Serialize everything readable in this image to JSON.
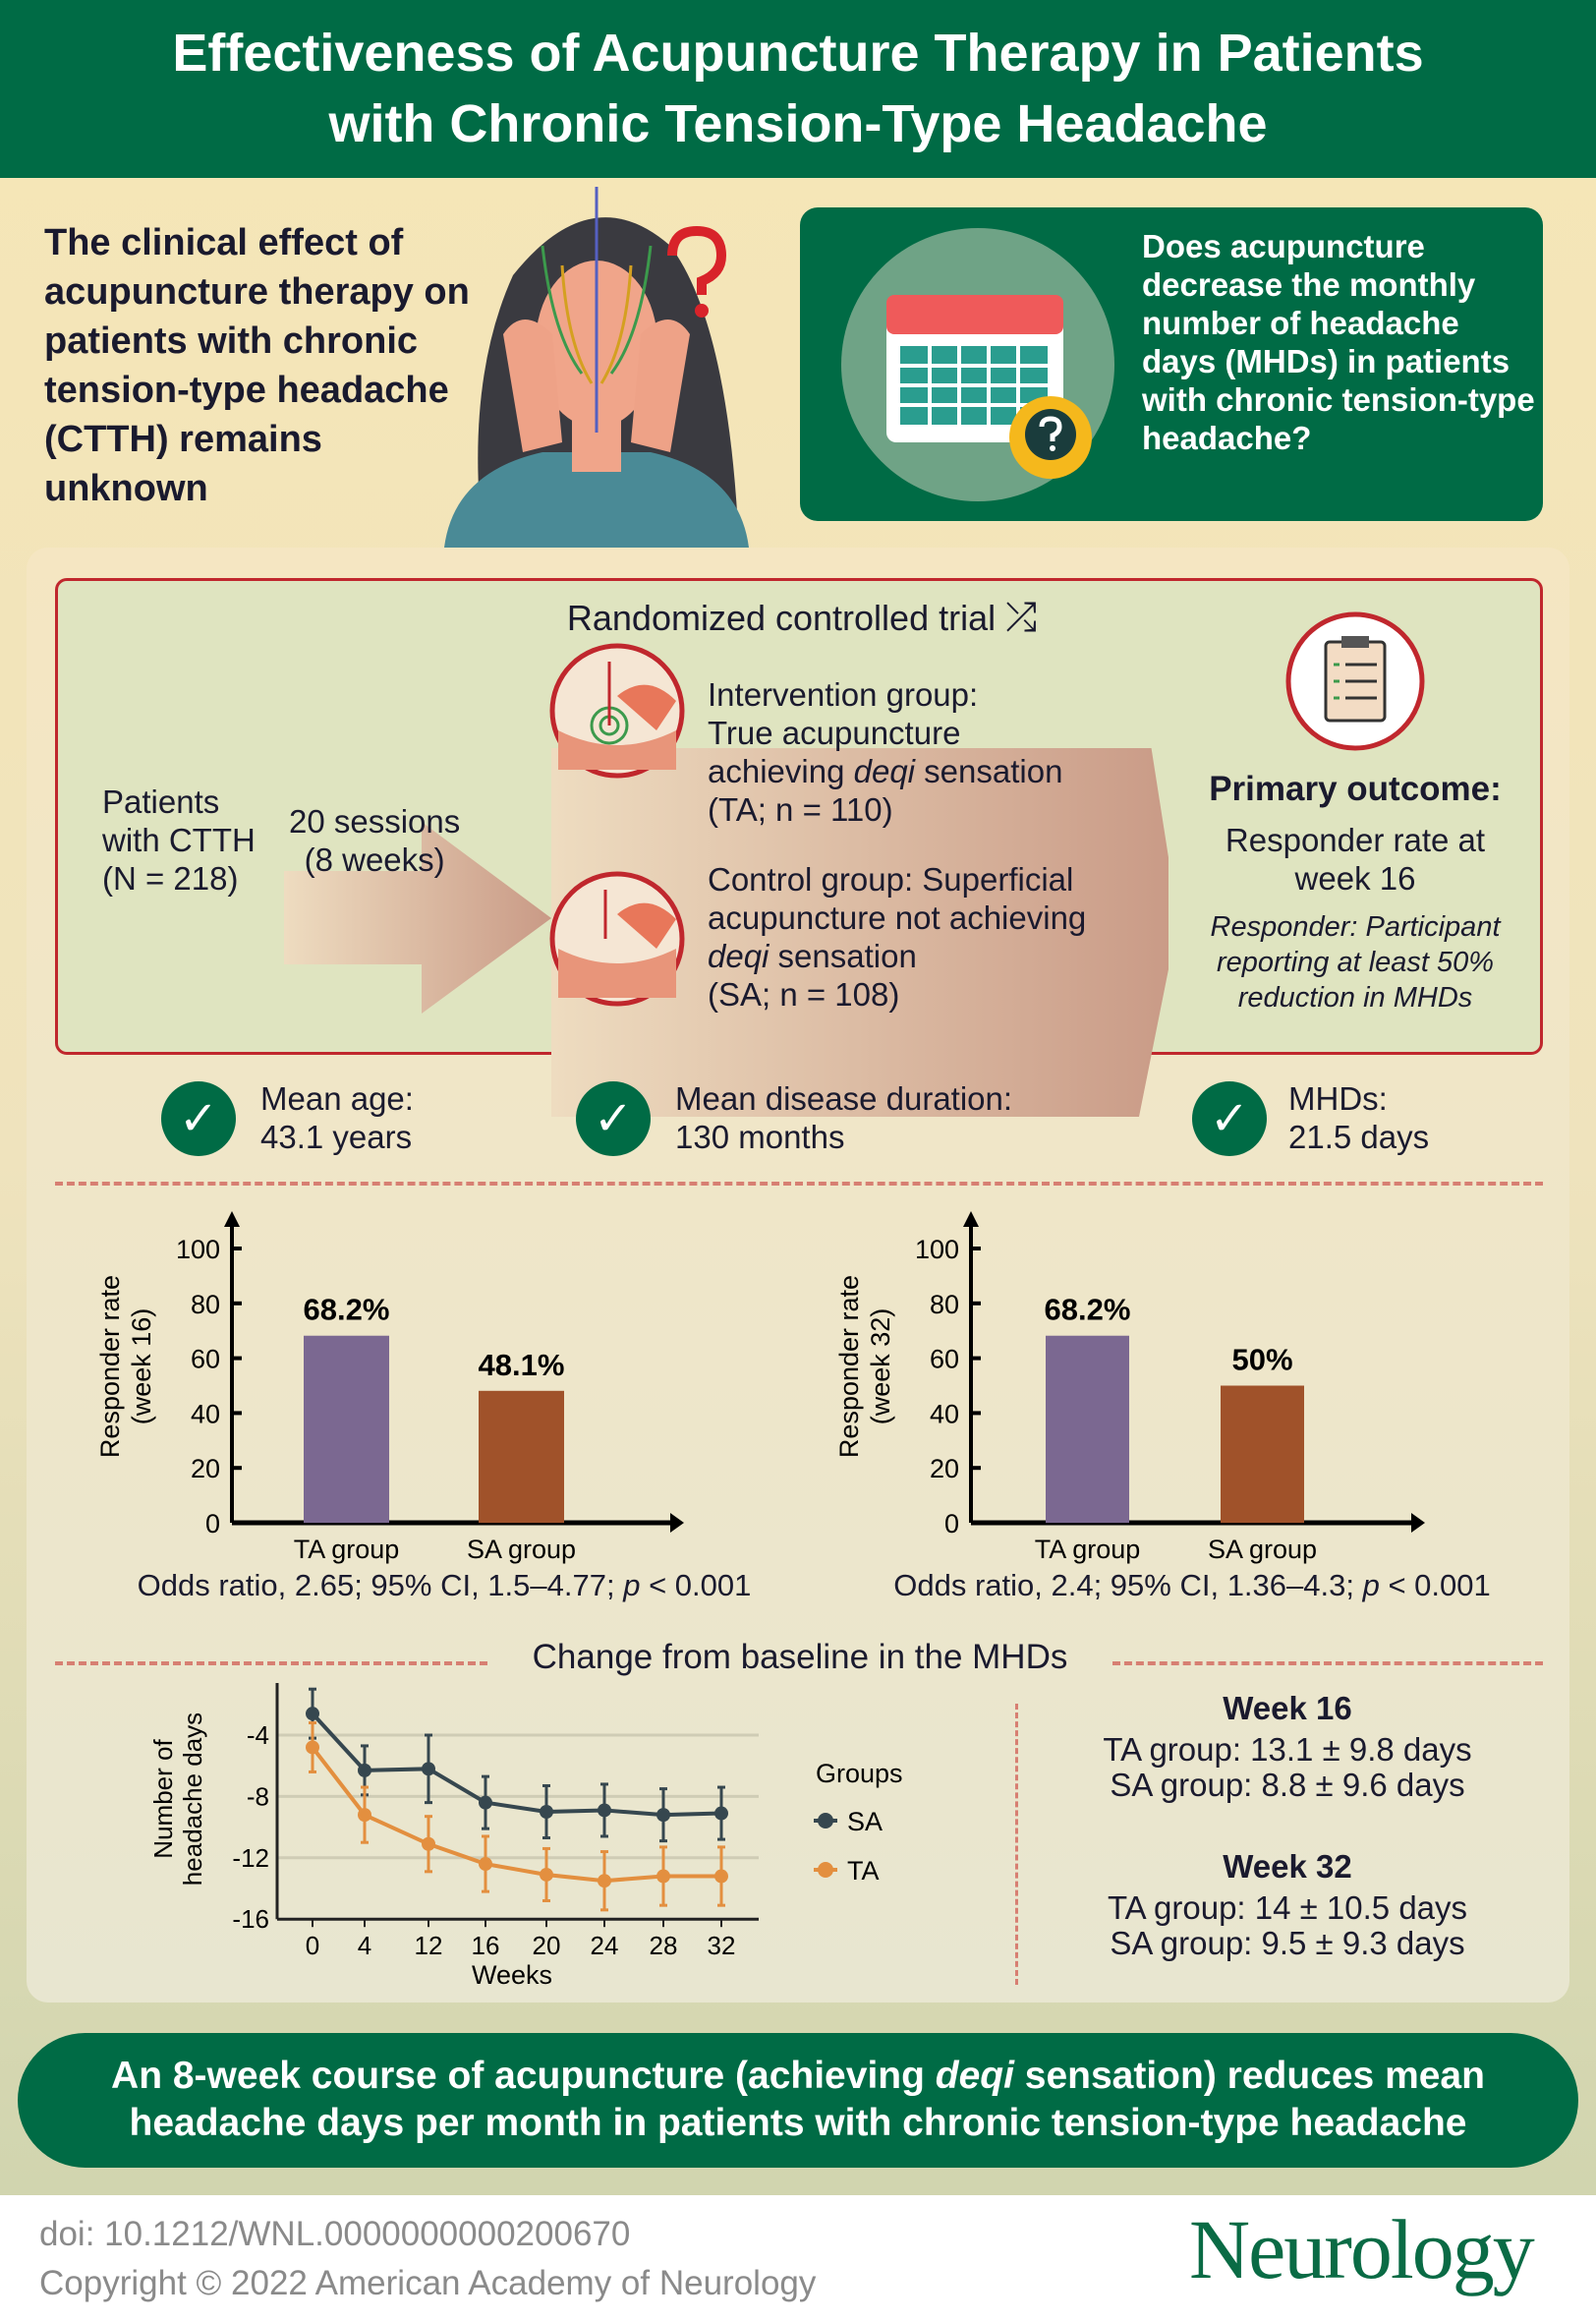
{
  "header": {
    "line1": "Effectiveness of Acupuncture Therapy in Patients",
    "line2": "with Chronic Tension-Type Headache"
  },
  "intro": "The clinical effect of acupuncture therapy on patients with chronic tension-type headache (CTTH) remains unknown",
  "question": "Does acupuncture decrease the monthly number of headache days (MHDs) in patients with chronic tension-type headache?",
  "rct": {
    "title": "Randomized controlled trial",
    "patients": [
      "Patients",
      "with CTTH",
      "(N = 218)"
    ],
    "sessions": [
      "20 sessions",
      "(8 weeks)"
    ],
    "intervention": {
      "l1": "Intervention group:",
      "l2": "True acupuncture",
      "l3a": "achieving ",
      "l3b": "deqi",
      "l3c": " sensation",
      "l4": "(TA; n = 110)"
    },
    "control": {
      "l1": "Control group: Superficial",
      "l2": "acupuncture not achieving",
      "l3a": "deqi",
      "l3b": " sensation",
      "l4": "(SA; n = 108)"
    },
    "outcome": {
      "title": "Primary outcome:",
      "l1": "Responder rate at",
      "l2": "week 16",
      "d1": "Responder: Participant",
      "d2": "reporting at least 50%",
      "d3": "reduction in MHDs"
    }
  },
  "baseline": [
    {
      "label": "Mean age:",
      "value": "43.1 years"
    },
    {
      "label": "Mean disease duration:",
      "value": "130 months"
    },
    {
      "label": "MHDs:",
      "value": "21.5 days"
    }
  ],
  "chart_data": [
    {
      "type": "bar",
      "ylabel": "Responder rate (week 16)",
      "ylabel1": "Responder rate",
      "ylabel2": "(week 16)",
      "categories": [
        "TA group",
        "SA group"
      ],
      "values": [
        68.2,
        48.1
      ],
      "labels": [
        "68.2%",
        "48.1%"
      ],
      "ylim": [
        0,
        100
      ],
      "yticks": [
        0,
        20,
        40,
        60,
        80,
        100
      ],
      "colors": [
        "#7b6891",
        "#a0522a"
      ],
      "note": {
        "a": "Odds ratio, 2.65; 95% CI, 1.5–4.77; ",
        "p": "p",
        "b": " < 0.001"
      }
    },
    {
      "type": "bar",
      "ylabel": "Responder rate (week 32)",
      "ylabel1": "Responder rate",
      "ylabel2": "(week 32)",
      "categories": [
        "TA group",
        "SA group"
      ],
      "values": [
        68.2,
        50
      ],
      "labels": [
        "68.2%",
        "50%"
      ],
      "ylim": [
        0,
        100
      ],
      "yticks": [
        0,
        20,
        40,
        60,
        80,
        100
      ],
      "colors": [
        "#7b6891",
        "#a0522a"
      ],
      "note": {
        "a": "Odds ratio, 2.4; 95% CI, 1.36–4.3; ",
        "p": "p",
        "b": " < 0.001"
      }
    },
    {
      "type": "line",
      "title": "Change from baseline in the MHDs",
      "xlabel": "Weeks",
      "ylabel1": "Number of",
      "ylabel2": "headache days",
      "x": [
        0,
        4,
        12,
        16,
        20,
        24,
        28,
        32
      ],
      "ylim": [
        -16,
        -1
      ],
      "yticks": [
        -4,
        -8,
        -12,
        -16
      ],
      "legend_title": "Groups",
      "series": [
        {
          "name": "SA",
          "color": "#36474f",
          "values": [
            -2.6,
            -6.3,
            -6.2,
            -8.4,
            -9.0,
            -8.9,
            -9.2,
            -9.1
          ],
          "err": [
            1.6,
            1.6,
            2.2,
            1.7,
            1.7,
            1.7,
            1.7,
            1.7
          ]
        },
        {
          "name": "TA",
          "color": "#e38f3f",
          "values": [
            -4.8,
            -9.2,
            -11.1,
            -12.4,
            -13.1,
            -13.5,
            -13.2,
            -13.2
          ],
          "err": [
            1.6,
            1.8,
            1.8,
            1.8,
            1.7,
            1.9,
            1.9,
            1.9
          ]
        }
      ]
    }
  ],
  "summary": {
    "w16": {
      "title": "Week 16",
      "ta": "TA group: 13.1 ± 9.8 days",
      "sa": "SA group: 8.8 ± 9.6 days"
    },
    "w32": {
      "title": "Week 32",
      "ta": "TA group: 14 ± 10.5 days",
      "sa": "SA group: 9.5 ± 9.3 days"
    }
  },
  "banner": {
    "l1a": "An 8-week course of acupuncture (achieving ",
    "l1b": "deqi",
    "l1c": " sensation) reduces mean",
    "l2": "headache days per month in patients with chronic tension-type headache"
  },
  "footer": {
    "doi": "doi: 10.1212/WNL.0000000000200670",
    "copyright": "Copyright © 2022 American Academy of Neurology",
    "logo": "Neurology"
  }
}
